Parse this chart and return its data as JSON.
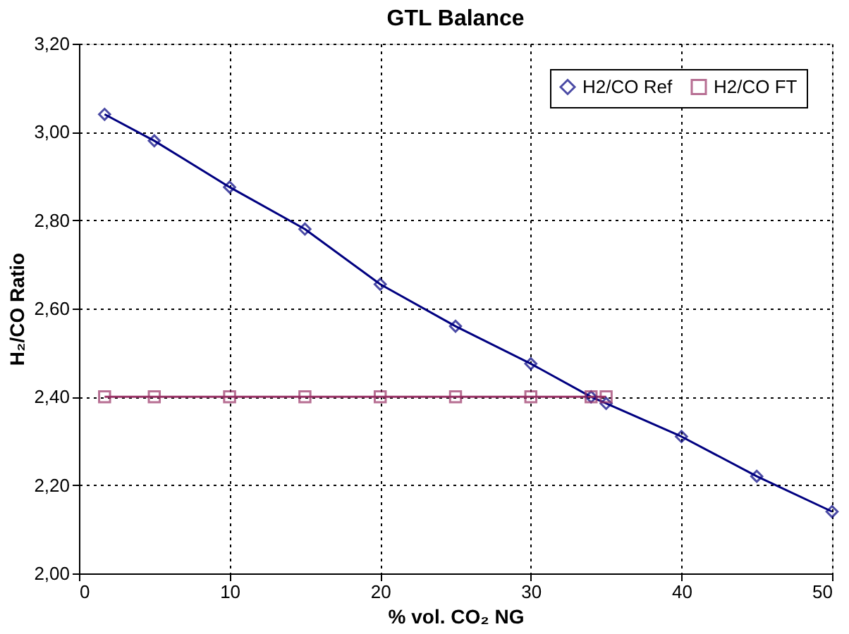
{
  "chart_data": {
    "type": "line",
    "title": "GTL Balance",
    "xlabel": "% vol. CO₂ NG",
    "ylabel": "H₂/CO Ratio",
    "xlim": [
      0,
      50
    ],
    "xticks": [
      0,
      10,
      20,
      30,
      40,
      50
    ],
    "ylim": [
      2.0,
      3.2
    ],
    "yticks": [
      {
        "value": 2.0,
        "label": "2,00"
      },
      {
        "value": 2.2,
        "label": "2,20"
      },
      {
        "value": 2.4,
        "label": "2,40"
      },
      {
        "value": 2.6,
        "label": "2,60"
      },
      {
        "value": 2.8,
        "label": "2,80"
      },
      {
        "value": 3.0,
        "label": "3,00"
      },
      {
        "value": 3.2,
        "label": "3,20"
      }
    ],
    "grid": true,
    "legend": "top right",
    "line_style": "solid",
    "series": [
      {
        "name": "H2/CO Ref",
        "color": "#000080",
        "marker": "diamond",
        "x": [
          1.7,
          5,
          10,
          15,
          20,
          25,
          30,
          34,
          35,
          40,
          45,
          50
        ],
        "values": [
          3.04,
          2.98,
          2.875,
          2.78,
          2.655,
          2.56,
          2.475,
          2.4,
          2.385,
          2.31,
          2.22,
          2.14
        ]
      },
      {
        "name": "H2/CO FT",
        "color": "#993366",
        "marker": "square",
        "x": [
          1.7,
          5,
          10,
          15,
          20,
          25,
          30,
          34,
          35
        ],
        "values": [
          2.4,
          2.4,
          2.4,
          2.4,
          2.4,
          2.4,
          2.4,
          2.4,
          2.4
        ]
      }
    ]
  }
}
